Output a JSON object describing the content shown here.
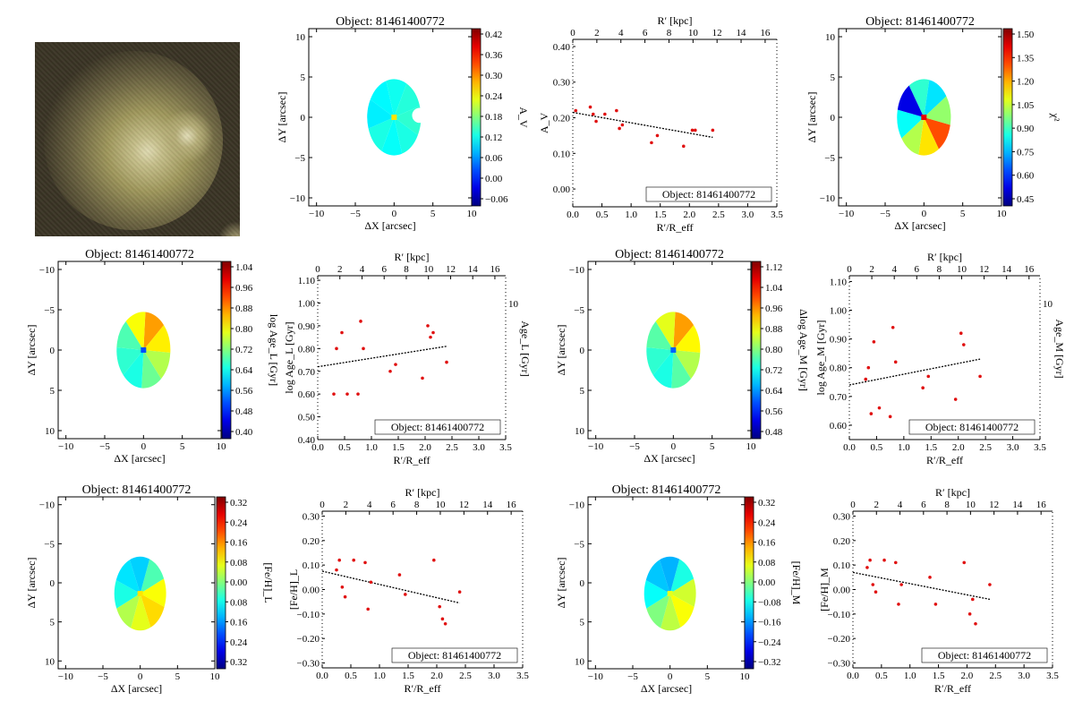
{
  "figure": {
    "object_title": "Object: 81461400772",
    "image_label": "galaxy image cutout"
  },
  "chart_data": [
    {
      "id": "map_av",
      "type": "heatmap",
      "title": "Object: 81461400772",
      "xlabel": "ΔX [arcsec]",
      "ylabel": "ΔY [arcsec]",
      "xlim": [
        -11,
        10
      ],
      "ylim": [
        -11,
        11
      ],
      "y_inverted": false,
      "xticks": [
        "−10",
        "−5",
        "0",
        "5",
        "10"
      ],
      "yticks": [
        "10",
        "5",
        "0",
        "−5",
        "−10"
      ],
      "colorbar_label": "A_V",
      "colorbar_ticks": [
        "0.42",
        "0.36",
        "0.30",
        "0.24",
        "0.18",
        "0.12",
        "0.06",
        "0.00",
        "−0.06"
      ],
      "colorbar_range": [
        -0.08,
        0.44
      ]
    },
    {
      "id": "profile_av",
      "type": "scatter",
      "xlabel": "R′/R_eff",
      "ylabel": "A_V",
      "top_label": "R′ [kpc]",
      "xlim": [
        0,
        3.5
      ],
      "ylim": [
        -0.05,
        0.42
      ],
      "xticks": [
        "0.0",
        "0.5",
        "1.0",
        "1.5",
        "2.0",
        "2.5",
        "3.0",
        "3.5"
      ],
      "yticks": [
        "0.40",
        "0.30",
        "0.20",
        "0.10",
        "0.00"
      ],
      "top_ticks": [
        "0",
        "2",
        "4",
        "6",
        "8",
        "10",
        "12",
        "14",
        "16"
      ],
      "legend": "Object: 81461400772",
      "points": [
        [
          0.05,
          0.22
        ],
        [
          0.3,
          0.23
        ],
        [
          0.35,
          0.21
        ],
        [
          0.4,
          0.19
        ],
        [
          0.55,
          0.21
        ],
        [
          0.75,
          0.22
        ],
        [
          0.8,
          0.17
        ],
        [
          0.85,
          0.18
        ],
        [
          1.35,
          0.13
        ],
        [
          1.45,
          0.15
        ],
        [
          1.9,
          0.12
        ],
        [
          2.05,
          0.165
        ],
        [
          2.1,
          0.165
        ],
        [
          2.4,
          0.165
        ]
      ],
      "fit": [
        [
          0.0,
          0.215
        ],
        [
          2.4,
          0.145
        ]
      ]
    },
    {
      "id": "map_chi2",
      "type": "heatmap",
      "title": "Object: 81461400772",
      "xlabel": "ΔX [arcsec]",
      "ylabel": "ΔY [arcsec]",
      "xlim": [
        -11,
        10
      ],
      "ylim": [
        -11,
        11
      ],
      "xticks": [
        "−10",
        "−5",
        "0",
        "5",
        "10"
      ],
      "yticks": [
        "10",
        "5",
        "0",
        "−5",
        "−10"
      ],
      "colorbar_label": "χ²",
      "colorbar_ticks": [
        "1.50",
        "1.35",
        "1.20",
        "1.05",
        "0.90",
        "0.75",
        "0.60",
        "0.45"
      ],
      "colorbar_range": [
        0.4,
        1.52
      ]
    },
    {
      "id": "map_age_l",
      "type": "heatmap",
      "title": "Object: 81461400772",
      "xlabel": "ΔX [arcsec]",
      "ylabel": "ΔY [arcsec]",
      "xlim": [
        -11,
        10
      ],
      "ylim": [
        -11,
        11
      ],
      "y_inverted": true,
      "xticks": [
        "−10",
        "−5",
        "0",
        "5",
        "10"
      ],
      "yticks": [
        "10",
        "5",
        "0",
        "−5",
        "−10"
      ],
      "colorbar_label": "log Age_L [Gyr]",
      "colorbar_ticks": [
        "1.04",
        "0.96",
        "0.88",
        "0.80",
        "0.72",
        "0.64",
        "0.56",
        "0.48",
        "0.40"
      ],
      "colorbar_range": [
        0.4,
        1.1
      ]
    },
    {
      "id": "profile_age_l",
      "type": "scatter",
      "xlabel": "R′/R_eff",
      "ylabel": "log Age_L [Gyr]",
      "top_label": "R′ [kpc]",
      "right_label": "Age_L [Gyr]",
      "right_tick": "10",
      "xlim": [
        0,
        3.5
      ],
      "ylim": [
        0.4,
        1.12
      ],
      "xticks": [
        "0.0",
        "0.5",
        "1.0",
        "1.5",
        "2.0",
        "2.5",
        "3.0",
        "3.5"
      ],
      "yticks": [
        "1.10",
        "1.00",
        "0.90",
        "0.80",
        "0.70",
        "0.60",
        "0.50",
        "0.40"
      ],
      "top_ticks": [
        "0",
        "2",
        "4",
        "6",
        "8",
        "10",
        "12",
        "14",
        "16"
      ],
      "legend": "Object: 81461400772",
      "points": [
        [
          0.3,
          0.6
        ],
        [
          0.35,
          0.8
        ],
        [
          0.45,
          0.87
        ],
        [
          0.55,
          0.6
        ],
        [
          0.75,
          0.6
        ],
        [
          0.8,
          0.92
        ],
        [
          0.85,
          0.8
        ],
        [
          1.35,
          0.7
        ],
        [
          1.45,
          0.73
        ],
        [
          1.95,
          0.67
        ],
        [
          2.05,
          0.9
        ],
        [
          2.1,
          0.85
        ],
        [
          2.15,
          0.87
        ],
        [
          2.4,
          0.74
        ]
      ],
      "fit": [
        [
          0.0,
          0.72
        ],
        [
          2.4,
          0.81
        ]
      ]
    },
    {
      "id": "map_age_m",
      "type": "heatmap",
      "title": "Object: 81461400772",
      "xlabel": "ΔX [arcsec]",
      "ylabel": "ΔY [arcsec]",
      "xlim": [
        -11,
        10
      ],
      "ylim": [
        -11,
        11
      ],
      "y_inverted": true,
      "xticks": [
        "−10",
        "−5",
        "0",
        "5",
        "10"
      ],
      "yticks": [
        "10",
        "5",
        "0",
        "−5",
        "−10"
      ],
      "colorbar_label": "Δlog Age_M [Gyr]",
      "colorbar_ticks": [
        "1.12",
        "1.04",
        "0.96",
        "0.88",
        "0.80",
        "0.72",
        "0.64",
        "0.56",
        "0.48"
      ],
      "colorbar_range": [
        0.44,
        1.16
      ]
    },
    {
      "id": "profile_age_m",
      "type": "scatter",
      "xlabel": "R′/R_eff",
      "ylabel": "log Age_M [Gyr]",
      "top_label": "R′ [kpc]",
      "right_label": "Age_M [Gyr]",
      "right_tick": "10",
      "xlim": [
        0,
        3.5
      ],
      "ylim": [
        0.55,
        1.12
      ],
      "xticks": [
        "0.0",
        "0.5",
        "1.0",
        "1.5",
        "2.0",
        "2.5",
        "3.0",
        "3.5"
      ],
      "yticks": [
        "1.10",
        "1.00",
        "0.90",
        "0.80",
        "0.70",
        "0.60"
      ],
      "top_ticks": [
        "0",
        "2",
        "4",
        "6",
        "8",
        "10",
        "12",
        "14",
        "16"
      ],
      "legend": "Object: 81461400772",
      "points": [
        [
          0.3,
          0.76
        ],
        [
          0.35,
          0.8
        ],
        [
          0.4,
          0.64
        ],
        [
          0.45,
          0.89
        ],
        [
          0.55,
          0.66
        ],
        [
          0.75,
          0.63
        ],
        [
          0.8,
          0.94
        ],
        [
          0.85,
          0.82
        ],
        [
          1.35,
          0.73
        ],
        [
          1.45,
          0.77
        ],
        [
          1.95,
          0.69
        ],
        [
          2.05,
          0.92
        ],
        [
          2.1,
          0.88
        ],
        [
          2.4,
          0.77
        ]
      ],
      "fit": [
        [
          0.0,
          0.74
        ],
        [
          2.4,
          0.83
        ]
      ]
    },
    {
      "id": "map_feh_l",
      "type": "heatmap",
      "title": "Object: 81461400772",
      "xlabel": "ΔX [arcsec]",
      "ylabel": "ΔY [arcsec]",
      "xlim": [
        -11,
        10
      ],
      "ylim": [
        -11,
        11
      ],
      "y_inverted": true,
      "xticks": [
        "−10",
        "−5",
        "0",
        "5",
        "10"
      ],
      "yticks": [
        "10",
        "5",
        "0",
        "−5",
        "−10"
      ],
      "colorbar_label": "[Fe/H]_L",
      "colorbar_ticks": [
        "0.32",
        "0.24",
        "0.16",
        "0.08",
        "0.00",
        "0.08",
        "0.16",
        "0.24",
        "0.32"
      ],
      "colorbar_range": [
        -0.34,
        0.34
      ]
    },
    {
      "id": "profile_feh_l",
      "type": "scatter",
      "xlabel": "R′/R_eff",
      "ylabel": "[Fe/H]_L",
      "top_label": "R′ [kpc]",
      "xlim": [
        0,
        3.5
      ],
      "ylim": [
        -0.32,
        0.32
      ],
      "xticks": [
        "0.0",
        "0.5",
        "1.0",
        "1.5",
        "2.0",
        "2.5",
        "3.0",
        "3.5"
      ],
      "yticks": [
        "0.30",
        "0.20",
        "0.10",
        "0.00",
        "−0.10",
        "−0.20",
        "−0.30"
      ],
      "top_ticks": [
        "0",
        "2",
        "4",
        "6",
        "8",
        "10",
        "12",
        "14",
        "16"
      ],
      "legend": "Object: 81461400772",
      "points": [
        [
          0.25,
          0.08
        ],
        [
          0.3,
          0.12
        ],
        [
          0.35,
          0.01
        ],
        [
          0.4,
          -0.03
        ],
        [
          0.55,
          0.12
        ],
        [
          0.75,
          0.11
        ],
        [
          0.8,
          -0.08
        ],
        [
          0.85,
          0.03
        ],
        [
          1.35,
          0.06
        ],
        [
          1.45,
          -0.02
        ],
        [
          1.95,
          0.12
        ],
        [
          2.05,
          -0.07
        ],
        [
          2.1,
          -0.12
        ],
        [
          2.15,
          -0.14
        ],
        [
          2.4,
          -0.01
        ]
      ],
      "fit": [
        [
          0.0,
          0.075
        ],
        [
          2.4,
          -0.055
        ]
      ]
    },
    {
      "id": "map_feh_m",
      "type": "heatmap",
      "title": "Object: 81461400772",
      "xlabel": "ΔX [arcsec]",
      "ylabel": "ΔY [arcsec]",
      "xlim": [
        -11,
        10
      ],
      "ylim": [
        -11,
        11
      ],
      "y_inverted": true,
      "xticks": [
        "−10",
        "−5",
        "0",
        "5",
        "10"
      ],
      "yticks": [
        "10",
        "5",
        "0",
        "−5",
        "−10"
      ],
      "colorbar_label": "[Fe/H]_M",
      "colorbar_ticks": [
        "0.32",
        "0.24",
        "0.16",
        "0.08",
        "0.00",
        "−0.08",
        "−0.16",
        "−0.24",
        "−0.32"
      ],
      "colorbar_range": [
        -0.34,
        0.34
      ]
    },
    {
      "id": "profile_feh_m",
      "type": "scatter",
      "xlabel": "R′/R_eff",
      "ylabel": "[Fe/H]_M",
      "top_label": "R′ [kpc]",
      "xlim": [
        0,
        3.5
      ],
      "ylim": [
        -0.32,
        0.32
      ],
      "xticks": [
        "0.0",
        "0.5",
        "1.0",
        "1.5",
        "2.0",
        "2.5",
        "3.0",
        "3.5"
      ],
      "yticks": [
        "0.30",
        "0.20",
        "0.10",
        "0.00",
        "−0.10",
        "−0.20",
        "−0.30"
      ],
      "top_ticks": [
        "0",
        "2",
        "4",
        "6",
        "8",
        "10",
        "12",
        "14",
        "16"
      ],
      "legend": "Object: 81461400772",
      "points": [
        [
          0.25,
          0.09
        ],
        [
          0.3,
          0.12
        ],
        [
          0.35,
          0.02
        ],
        [
          0.4,
          -0.01
        ],
        [
          0.55,
          0.12
        ],
        [
          0.75,
          0.11
        ],
        [
          0.8,
          -0.06
        ],
        [
          0.85,
          0.02
        ],
        [
          1.35,
          0.05
        ],
        [
          1.45,
          -0.06
        ],
        [
          1.95,
          0.11
        ],
        [
          2.05,
          -0.1
        ],
        [
          2.1,
          -0.04
        ],
        [
          2.15,
          -0.14
        ],
        [
          2.4,
          0.02
        ]
      ],
      "fit": [
        [
          0.0,
          0.07
        ],
        [
          2.4,
          -0.04
        ]
      ]
    }
  ]
}
